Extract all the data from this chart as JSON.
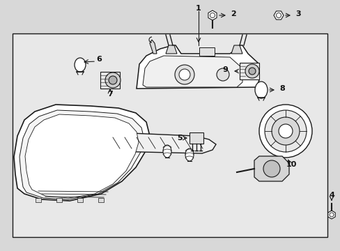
{
  "bg_color": "#d8d8d8",
  "inner_bg": "#e8e8e8",
  "line_color": "#1a1a1a",
  "text_color": "#111111",
  "fig_width": 4.89,
  "fig_height": 3.6,
  "dpi": 100
}
